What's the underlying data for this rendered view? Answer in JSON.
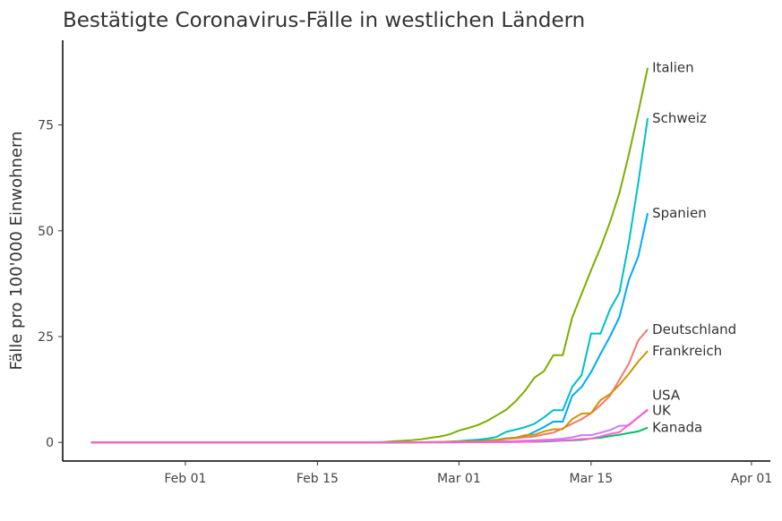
{
  "chart_data": {
    "type": "line",
    "title": "Bestätigte Coronavirus-Fälle in westlichen Ländern",
    "y_label": "Fälle pro 100'000 Einwohnern",
    "x": [
      "Jan 22",
      "Jan 23",
      "Jan 24",
      "Jan 25",
      "Jan 26",
      "Jan 27",
      "Jan 28",
      "Jan 29",
      "Jan 30",
      "Jan 31",
      "Feb 01",
      "Feb 02",
      "Feb 03",
      "Feb 04",
      "Feb 05",
      "Feb 06",
      "Feb 07",
      "Feb 08",
      "Feb 09",
      "Feb 10",
      "Feb 11",
      "Feb 12",
      "Feb 13",
      "Feb 14",
      "Feb 15",
      "Feb 16",
      "Feb 17",
      "Feb 18",
      "Feb 19",
      "Feb 20",
      "Feb 21",
      "Feb 22",
      "Feb 23",
      "Feb 24",
      "Feb 25",
      "Feb 26",
      "Feb 27",
      "Feb 28",
      "Feb 29",
      "Mar 01",
      "Mar 02",
      "Mar 03",
      "Mar 04",
      "Mar 05",
      "Mar 06",
      "Mar 07",
      "Mar 08",
      "Mar 09",
      "Mar 10",
      "Mar 11",
      "Mar 12",
      "Mar 13",
      "Mar 14",
      "Mar 15",
      "Mar 16",
      "Mar 17",
      "Mar 18",
      "Mar 19",
      "Mar 20",
      "Mar 21"
    ],
    "xlim": [
      "Jan 19",
      "Apr 03"
    ],
    "xticks": [
      "Feb 01",
      "Feb 15",
      "Mar 01",
      "Mar 15",
      "Apr 01"
    ],
    "ylim": [
      -4.4,
      95
    ],
    "yticks": [
      0,
      25,
      50,
      75
    ],
    "grid": false,
    "series": [
      {
        "name": "Italien",
        "color": "#7CAE00",
        "values": [
          0,
          0,
          0,
          0,
          0,
          0,
          0,
          0,
          0,
          0,
          0,
          0,
          0,
          0,
          0,
          0,
          0,
          0,
          0,
          0,
          0,
          0,
          0,
          0,
          0,
          0,
          0,
          0,
          0,
          0,
          0.03,
          0.1,
          0.26,
          0.38,
          0.53,
          0.74,
          1.1,
          1.4,
          1.9,
          2.8,
          3.4,
          4.1,
          5.1,
          6.4,
          7.7,
          9.7,
          12.2,
          15.3,
          16.8,
          20.6,
          20.6,
          29.5,
          35.1,
          40.7,
          46.0,
          52.0,
          58.9,
          68.0,
          78.0,
          88.5
        ]
      },
      {
        "name": "Schweiz",
        "color": "#00BFC4",
        "values": [
          0,
          0,
          0,
          0,
          0,
          0,
          0,
          0,
          0,
          0,
          0,
          0,
          0,
          0,
          0,
          0,
          0,
          0,
          0,
          0,
          0,
          0,
          0,
          0,
          0,
          0,
          0,
          0,
          0,
          0,
          0,
          0,
          0,
          0,
          0.01,
          0.01,
          0.09,
          0.1,
          0.21,
          0.31,
          0.5,
          0.65,
          0.9,
          1.3,
          2.5,
          3.0,
          3.6,
          4.4,
          5.9,
          7.6,
          7.6,
          13.1,
          15.9,
          25.7,
          25.7,
          31.4,
          35.4,
          47.2,
          61.3,
          76.6
        ]
      },
      {
        "name": "Spanien",
        "color": "#00A9FF",
        "values": [
          0,
          0,
          0,
          0,
          0,
          0,
          0,
          0,
          0,
          0,
          0,
          0,
          0,
          0,
          0,
          0,
          0,
          0,
          0,
          0,
          0,
          0,
          0,
          0,
          0,
          0,
          0,
          0,
          0,
          0,
          0,
          0,
          0,
          0,
          0.03,
          0.03,
          0.03,
          0.07,
          0.1,
          0.18,
          0.26,
          0.35,
          0.48,
          0.61,
          0.98,
          1.1,
          1.4,
          2.5,
          3.6,
          4.9,
          4.9,
          11.0,
          13.1,
          16.6,
          20.9,
          25.0,
          29.6,
          38.4,
          43.9,
          54.2
        ]
      },
      {
        "name": "Deutschland",
        "color": "#F8766D",
        "values": [
          0,
          0,
          0,
          0,
          0,
          0,
          0,
          0,
          0,
          0,
          0,
          0,
          0,
          0,
          0,
          0,
          0,
          0,
          0,
          0,
          0,
          0,
          0,
          0,
          0,
          0,
          0,
          0,
          0,
          0,
          0.02,
          0.02,
          0.02,
          0.02,
          0.02,
          0.03,
          0.05,
          0.06,
          0.07,
          0.16,
          0.19,
          0.24,
          0.31,
          0.5,
          0.8,
          1.0,
          1.2,
          1.4,
          1.9,
          2.3,
          3.3,
          4.4,
          5.5,
          6.9,
          8.8,
          11.0,
          14.8,
          18.6,
          24.1,
          26.7
        ]
      },
      {
        "name": "Frankreich",
        "color": "#CD9600",
        "values": [
          0,
          0,
          0,
          0,
          0,
          0,
          0,
          0,
          0,
          0,
          0,
          0,
          0,
          0,
          0,
          0,
          0,
          0,
          0,
          0,
          0,
          0,
          0,
          0,
          0,
          0,
          0,
          0,
          0,
          0,
          0.02,
          0.02,
          0.02,
          0.02,
          0.02,
          0.03,
          0.06,
          0.1,
          0.15,
          0.2,
          0.29,
          0.31,
          0.43,
          0.6,
          0.9,
          1.1,
          1.7,
          1.8,
          2.6,
          3.1,
          3.1,
          5.5,
          6.8,
          6.9,
          10.0,
          11.4,
          13.6,
          16.2,
          19.1,
          21.6
        ]
      },
      {
        "name": "Kanada",
        "color": "#00BE67",
        "values": [
          0,
          0,
          0,
          0,
          0,
          0,
          0,
          0,
          0,
          0,
          0,
          0,
          0,
          0,
          0,
          0,
          0,
          0,
          0,
          0,
          0,
          0,
          0,
          0,
          0,
          0,
          0,
          0,
          0,
          0,
          0.02,
          0.02,
          0.02,
          0.02,
          0.02,
          0.02,
          0.02,
          0.02,
          0.02,
          0.05,
          0.07,
          0.08,
          0.09,
          0.1,
          0.12,
          0.14,
          0.15,
          0.15,
          0.2,
          0.3,
          0.4,
          0.5,
          0.6,
          0.9,
          1.1,
          1.5,
          1.8,
          2.2,
          2.6,
          3.5
        ]
      },
      {
        "name": "UK",
        "color": "#C77CFF",
        "values": [
          0,
          0,
          0,
          0,
          0,
          0,
          0,
          0,
          0,
          0,
          0,
          0,
          0,
          0,
          0,
          0,
          0,
          0,
          0,
          0,
          0,
          0,
          0,
          0,
          0,
          0,
          0,
          0,
          0,
          0,
          0.01,
          0.01,
          0.01,
          0.01,
          0.01,
          0.01,
          0.01,
          0.01,
          0.01,
          0.05,
          0.06,
          0.08,
          0.13,
          0.17,
          0.25,
          0.31,
          0.41,
          0.48,
          0.6,
          0.69,
          0.88,
          1.2,
          1.7,
          1.7,
          2.3,
          2.9,
          3.9,
          4.0,
          6.0,
          7.6
        ]
      },
      {
        "name": "USA",
        "color": "#FF61CC",
        "values": [
          0,
          0,
          0,
          0,
          0,
          0,
          0,
          0,
          0,
          0,
          0,
          0,
          0,
          0,
          0,
          0,
          0,
          0,
          0,
          0,
          0,
          0,
          0,
          0,
          0,
          0,
          0,
          0,
          0,
          0,
          0.01,
          0.01,
          0.01,
          0.01,
          0.01,
          0.01,
          0.01,
          0.01,
          0.01,
          0.02,
          0.03,
          0.03,
          0.04,
          0.05,
          0.07,
          0.1,
          0.15,
          0.2,
          0.3,
          0.4,
          0.5,
          0.6,
          0.8,
          0.9,
          1.4,
          2.0,
          2.4,
          4.2,
          5.9,
          7.8
        ]
      }
    ]
  }
}
